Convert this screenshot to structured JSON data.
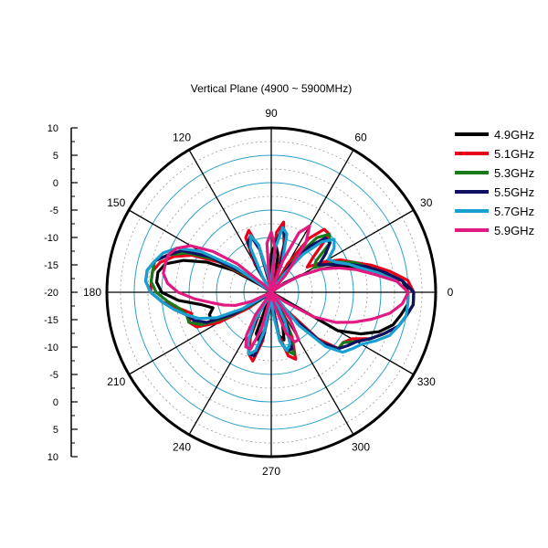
{
  "chart_data": {
    "type": "polar-line",
    "title": "Vertical Plane (4900 ~ 5900MHz)",
    "radial_axis": {
      "min": -20,
      "max": 10,
      "step": 5,
      "tick_labels": [
        "10",
        "5",
        "0",
        "-5",
        "-10",
        "-15",
        "-20",
        "-15",
        "-10",
        "-5",
        "0",
        "5",
        "10"
      ]
    },
    "angle_labels": [
      "0",
      "30",
      "60",
      "90",
      "120",
      "150",
      "180",
      "210",
      "240",
      "270",
      "300",
      "330"
    ],
    "grid": true,
    "legend": "right",
    "series": [
      {
        "name": "4.9GHz",
        "color": "#000000",
        "angles": [
          0,
          5,
          10,
          15,
          20,
          25,
          30,
          35,
          40,
          45,
          50,
          55,
          60,
          65,
          70,
          75,
          80,
          85,
          90,
          95,
          100,
          105,
          110,
          115,
          120,
          125,
          130,
          135,
          140,
          145,
          150,
          155,
          160,
          165,
          170,
          175,
          180,
          185,
          190,
          195,
          200,
          205,
          210,
          215,
          220,
          225,
          230,
          235,
          240,
          245,
          250,
          255,
          260,
          265,
          270,
          275,
          280,
          285,
          290,
          295,
          300,
          305,
          310,
          315,
          320,
          325,
          330,
          335,
          340,
          345,
          350,
          355
        ],
        "values": [
          5,
          4,
          0,
          -3,
          -6,
          -10,
          -14,
          -17,
          -20,
          -20,
          -20,
          -20,
          -20,
          -20,
          -20,
          -17,
          -13,
          -11,
          -13,
          -18,
          -20,
          -20,
          -20,
          -20,
          -20,
          -20,
          -20,
          -20,
          -20,
          -18,
          -12,
          -7,
          -3,
          0,
          1,
          1,
          0,
          -3,
          -7,
          -9,
          -8,
          -8,
          -13,
          -20,
          -20,
          -20,
          -20,
          -20,
          -20,
          -20,
          -12,
          -11,
          -13,
          -18,
          -20,
          -18,
          -12,
          -11,
          -14,
          -20,
          -20,
          -20,
          -20,
          -20,
          -20,
          -20,
          -6,
          -2,
          1,
          3,
          4,
          5
        ]
      },
      {
        "name": "5.1GHz",
        "color": "#e8001a",
        "angles": [
          0,
          5,
          10,
          15,
          20,
          25,
          30,
          35,
          40,
          45,
          50,
          55,
          60,
          65,
          70,
          75,
          80,
          85,
          90,
          95,
          100,
          105,
          110,
          115,
          120,
          125,
          130,
          135,
          140,
          145,
          150,
          155,
          160,
          165,
          170,
          175,
          180,
          185,
          190,
          195,
          200,
          205,
          210,
          215,
          220,
          225,
          230,
          235,
          240,
          245,
          250,
          255,
          260,
          265,
          270,
          275,
          280,
          285,
          290,
          295,
          300,
          305,
          310,
          315,
          320,
          325,
          330,
          335,
          340,
          345,
          350,
          355
        ],
        "values": [
          6,
          5,
          2,
          -1,
          -4,
          -6,
          -9,
          -12,
          -10,
          -5,
          -5,
          -8,
          -14,
          -20,
          -18,
          -11,
          -7,
          -9,
          -17,
          -20,
          -19,
          -12,
          -8,
          -9,
          -14,
          -20,
          -20,
          -20,
          -20,
          -16,
          -9,
          -4,
          -1,
          1,
          2,
          2,
          2,
          0,
          -3,
          -5,
          -4,
          -5,
          -9,
          -15,
          -20,
          -20,
          -20,
          -20,
          -16,
          -11,
          -8,
          -7,
          -11,
          -18,
          -20,
          -18,
          -12,
          -8,
          -7,
          -11,
          -16,
          -20,
          -16,
          -8,
          -4,
          -4,
          -3,
          0,
          2,
          4,
          5,
          6
        ]
      },
      {
        "name": "5.3GHz",
        "color": "#1a7a1a",
        "angles": [
          0,
          5,
          10,
          15,
          20,
          25,
          30,
          35,
          40,
          45,
          50,
          55,
          60,
          65,
          70,
          75,
          80,
          85,
          90,
          95,
          100,
          105,
          110,
          115,
          120,
          125,
          130,
          135,
          140,
          145,
          150,
          155,
          160,
          165,
          170,
          175,
          180,
          185,
          190,
          195,
          200,
          205,
          210,
          215,
          220,
          225,
          230,
          235,
          240,
          245,
          250,
          255,
          260,
          265,
          270,
          275,
          280,
          285,
          290,
          295,
          300,
          305,
          310,
          315,
          320,
          325,
          330,
          335,
          340,
          345,
          350,
          355
        ],
        "values": [
          6,
          4,
          1,
          -2,
          -4,
          -7,
          -11,
          -10,
          -6,
          -5,
          -7,
          -12,
          -18,
          -20,
          -15,
          -10,
          -8,
          -11,
          -18,
          -20,
          -17,
          -11,
          -9,
          -10,
          -16,
          -20,
          -20,
          -20,
          -20,
          -15,
          -8,
          -3,
          0,
          2,
          2,
          2,
          1,
          -1,
          -3,
          -4,
          -4,
          -6,
          -11,
          -17,
          -20,
          -20,
          -20,
          -20,
          -15,
          -10,
          -8,
          -8,
          -12,
          -17,
          -20,
          -17,
          -11,
          -9,
          -8,
          -12,
          -17,
          -20,
          -14,
          -7,
          -4,
          -4,
          -2,
          0,
          2,
          4,
          5,
          6
        ]
      },
      {
        "name": "5.5GHz",
        "color": "#101060",
        "angles": [
          0,
          5,
          10,
          15,
          20,
          25,
          30,
          35,
          40,
          45,
          50,
          55,
          60,
          65,
          70,
          75,
          80,
          85,
          90,
          95,
          100,
          105,
          110,
          115,
          120,
          125,
          130,
          135,
          140,
          145,
          150,
          155,
          160,
          165,
          170,
          175,
          180,
          185,
          190,
          195,
          200,
          205,
          210,
          215,
          220,
          225,
          230,
          235,
          240,
          245,
          250,
          255,
          260,
          265,
          270,
          275,
          280,
          285,
          290,
          295,
          300,
          305,
          310,
          315,
          320,
          325,
          330,
          335,
          340,
          345,
          350,
          355
        ],
        "values": [
          6,
          4,
          1,
          -2,
          -5,
          -8,
          -10,
          -8,
          -6,
          -6,
          -9,
          -14,
          -19,
          -20,
          -16,
          -10,
          -8,
          -11,
          -17,
          -20,
          -18,
          -12,
          -9,
          -10,
          -15,
          -20,
          -20,
          -20,
          -20,
          -14,
          -7,
          -2,
          0,
          2,
          3,
          3,
          2,
          0,
          -2,
          -4,
          -5,
          -7,
          -12,
          -18,
          -20,
          -20,
          -20,
          -20,
          -15,
          -10,
          -8,
          -8,
          -12,
          -17,
          -20,
          -17,
          -11,
          -9,
          -9,
          -13,
          -18,
          -20,
          -14,
          -7,
          -4,
          -3,
          -2,
          0,
          2,
          4,
          5,
          6
        ]
      },
      {
        "name": "5.7GHz",
        "color": "#1aa0d0",
        "angles": [
          0,
          5,
          10,
          15,
          20,
          25,
          30,
          35,
          40,
          45,
          50,
          55,
          60,
          65,
          70,
          75,
          80,
          85,
          90,
          95,
          100,
          105,
          110,
          115,
          120,
          125,
          130,
          135,
          140,
          145,
          150,
          155,
          160,
          165,
          170,
          175,
          180,
          185,
          190,
          195,
          200,
          205,
          210,
          215,
          220,
          225,
          230,
          235,
          240,
          245,
          250,
          255,
          260,
          265,
          270,
          275,
          280,
          285,
          290,
          295,
          300,
          305,
          310,
          315,
          320,
          325,
          330,
          335,
          340,
          345,
          350,
          355
        ],
        "values": [
          5,
          3,
          0,
          -3,
          -5,
          -7,
          -8,
          -6,
          -5,
          -7,
          -11,
          -16,
          -20,
          -20,
          -14,
          -9,
          -8,
          -12,
          -18,
          -20,
          -17,
          -11,
          -9,
          -11,
          -17,
          -20,
          -20,
          -20,
          -19,
          -12,
          -5,
          -1,
          1,
          2,
          3,
          3,
          2,
          0,
          -2,
          -4,
          -6,
          -9,
          -14,
          -20,
          -20,
          -20,
          -20,
          -20,
          -14,
          -10,
          -8,
          -9,
          -13,
          -18,
          -20,
          -16,
          -11,
          -9,
          -10,
          -14,
          -19,
          -20,
          -12,
          -6,
          -3,
          -2,
          -1,
          1,
          3,
          4,
          5,
          5
        ]
      },
      {
        "name": "5.9GHz",
        "color": "#e01a80",
        "angles": [
          0,
          5,
          10,
          15,
          20,
          25,
          30,
          35,
          40,
          45,
          50,
          55,
          60,
          65,
          70,
          75,
          80,
          85,
          90,
          95,
          100,
          105,
          110,
          115,
          120,
          125,
          130,
          135,
          140,
          145,
          150,
          155,
          160,
          165,
          170,
          175,
          180,
          185,
          190,
          195,
          200,
          205,
          210,
          215,
          220,
          225,
          230,
          235,
          240,
          245,
          250,
          255,
          260,
          265,
          270,
          275,
          280,
          285,
          290,
          295,
          300,
          305,
          310,
          315,
          320,
          325,
          330,
          335,
          340,
          345,
          350,
          355
        ],
        "values": [
          5,
          3,
          -1,
          -4,
          -7,
          -10,
          -14,
          -18,
          -20,
          -20,
          -16,
          -9,
          -6,
          -8,
          -14,
          -20,
          -19,
          -12,
          -9,
          -11,
          -18,
          -20,
          -20,
          -20,
          -20,
          -20,
          -20,
          -18,
          -12,
          -7,
          -3,
          -1,
          0,
          0,
          0,
          -1,
          -3,
          -6,
          -9,
          -11,
          -13,
          -16,
          -20,
          -20,
          -20,
          -20,
          -20,
          -15,
          -11,
          -9,
          -9,
          -13,
          -19,
          -20,
          -20,
          -20,
          -20,
          -17,
          -12,
          -10,
          -10,
          -14,
          -20,
          -20,
          -20,
          -17,
          -11,
          -7,
          -4,
          -1,
          2,
          4
        ]
      }
    ]
  }
}
